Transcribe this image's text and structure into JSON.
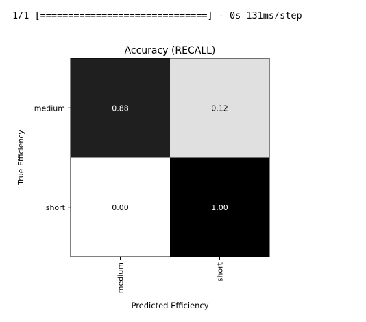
{
  "console": {
    "line": "1/1 [==============================] - 0s 131ms/step"
  },
  "chart_data": {
    "type": "heatmap",
    "title": "Accuracy (RECALL)",
    "xlabel": "Predicted Efficiency",
    "ylabel": "True Efficiency",
    "x_categories": [
      "medium",
      "short"
    ],
    "y_categories": [
      "medium",
      "short"
    ],
    "values": [
      [
        0.88,
        0.12
      ],
      [
        0.0,
        1.0
      ]
    ],
    "value_labels": [
      [
        "0.88",
        "0.12"
      ],
      [
        "0.00",
        "1.00"
      ]
    ],
    "colorscale": "greys",
    "vmin": 0,
    "vmax": 1,
    "grid": false,
    "legend": "none"
  }
}
